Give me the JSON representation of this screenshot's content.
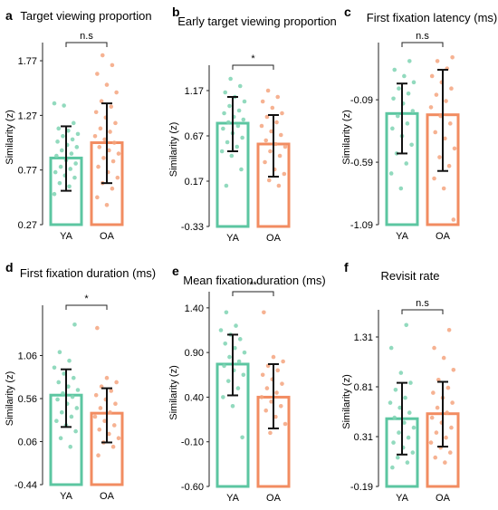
{
  "colors": {
    "young": "#5cc6a1",
    "old": "#f28c61",
    "young_dot": "#7fd3b3",
    "old_dot": "#f5a47f",
    "error": "#111111",
    "axis": "#222222"
  },
  "chart_data": [
    {
      "panel": "a",
      "type": "bar",
      "title": "Target viewing proportion",
      "ylabel": "Similarity (z)",
      "ylim": [
        0.27,
        1.87
      ],
      "yticks": [
        0.27,
        0.77,
        1.27,
        1.77
      ],
      "tick_labels": [
        "0.27",
        "0.77",
        "1.27",
        "1.77"
      ],
      "categories": [
        "YA",
        "OA"
      ],
      "values": [
        0.88,
        1.02
      ],
      "error": [
        [
          0.58,
          1.17
        ],
        [
          0.65,
          1.38
        ]
      ],
      "points": [
        [
          0.55,
          0.62,
          0.65,
          0.7,
          0.72,
          0.75,
          0.78,
          0.8,
          0.83,
          0.86,
          0.9,
          0.92,
          0.95,
          0.98,
          1.0,
          1.03,
          1.05,
          1.08,
          1.1,
          1.13,
          1.15,
          1.2,
          1.36,
          1.38
        ],
        [
          0.45,
          0.52,
          0.6,
          0.65,
          0.7,
          0.75,
          0.8,
          0.85,
          0.88,
          0.92,
          0.95,
          0.98,
          1.02,
          1.05,
          1.08,
          1.12,
          1.15,
          1.2,
          1.25,
          1.3,
          1.35,
          1.4,
          1.48,
          1.55,
          1.65,
          1.73,
          1.82
        ]
      ],
      "significance": "n.s"
    },
    {
      "panel": "b",
      "type": "bar",
      "title": "Early target viewing proportion",
      "ylabel": "Similarity (z)",
      "ylim": [
        -0.33,
        1.37
      ],
      "yticks": [
        -0.33,
        0.17,
        0.67,
        1.17
      ],
      "tick_labels": [
        "-0.33",
        "0.17",
        "0.67",
        "1.17"
      ],
      "categories": [
        "YA",
        "OA"
      ],
      "values": [
        0.81,
        0.58
      ],
      "error": [
        [
          0.5,
          1.1
        ],
        [
          0.22,
          0.9
        ]
      ],
      "points": [
        [
          0.12,
          0.3,
          0.45,
          0.5,
          0.55,
          0.6,
          0.65,
          0.7,
          0.75,
          0.78,
          0.82,
          0.85,
          0.88,
          0.92,
          0.95,
          1.0,
          1.05,
          1.1,
          1.15,
          1.22,
          1.3
        ],
        [
          0.12,
          0.18,
          0.25,
          0.3,
          0.38,
          0.45,
          0.5,
          0.55,
          0.58,
          0.62,
          0.68,
          0.72,
          0.78,
          0.82,
          0.88,
          0.92,
          0.98,
          1.05,
          1.1,
          1.17
        ]
      ],
      "significance": "*"
    },
    {
      "panel": "c",
      "type": "bar",
      "title": "First fixation latency (ms)",
      "ylabel": "Similarity (z)",
      "ylim": [
        -1.09,
        0.31
      ],
      "yticks": [
        -1.09,
        -0.59,
        -0.09
      ],
      "tick_labels": [
        "-1.09",
        "-0.59",
        "-0.09"
      ],
      "categories": [
        "YA",
        "OA"
      ],
      "values": [
        -0.2,
        -0.21
      ],
      "error": [
        [
          -0.52,
          0.04
        ],
        [
          -0.66,
          0.15
        ]
      ],
      "points": [
        [
          -0.8,
          -0.68,
          -0.6,
          -0.52,
          -0.45,
          -0.38,
          -0.32,
          -0.28,
          -0.22,
          -0.18,
          -0.12,
          -0.08,
          -0.04,
          0.0,
          0.05,
          0.1,
          0.15,
          0.22
        ],
        [
          -1.05,
          -0.8,
          -0.72,
          -0.62,
          -0.55,
          -0.48,
          -0.4,
          -0.35,
          -0.28,
          -0.22,
          -0.15,
          -0.1,
          -0.05,
          0.0,
          0.05,
          0.1,
          0.16,
          0.22,
          0.25
        ]
      ],
      "significance": "n.s"
    },
    {
      "panel": "d",
      "type": "bar",
      "title": "First fixation duration (ms)",
      "ylabel": "Similarity (z)",
      "ylim": [
        -0.44,
        1.56
      ],
      "yticks": [
        -0.44,
        0.06,
        0.56,
        1.06
      ],
      "tick_labels": [
        "-0.44",
        "0.06",
        "0.56",
        "1.06"
      ],
      "categories": [
        "YA",
        "OA"
      ],
      "values": [
        0.6,
        0.39
      ],
      "error": [
        [
          0.23,
          0.9
        ],
        [
          0.05,
          0.68
        ]
      ],
      "points": [
        [
          0.0,
          0.1,
          0.18,
          0.25,
          0.3,
          0.35,
          0.4,
          0.45,
          0.5,
          0.55,
          0.58,
          0.62,
          0.66,
          0.7,
          0.75,
          0.8,
          0.85,
          0.92,
          1.0,
          1.1,
          1.42
        ],
        [
          -0.1,
          0.0,
          0.05,
          0.1,
          0.15,
          0.2,
          0.25,
          0.3,
          0.35,
          0.4,
          0.45,
          0.5,
          0.55,
          0.6,
          0.65,
          0.7,
          0.75,
          0.8,
          1.38
        ]
      ],
      "significance": "*"
    },
    {
      "panel": "e",
      "type": "bar",
      "title": "Mean fixation duration (ms)",
      "ylabel": "Similarity (z)",
      "ylim": [
        -0.6,
        1.5
      ],
      "yticks": [
        -0.6,
        -0.1,
        0.4,
        0.9,
        1.4
      ],
      "tick_labels": [
        "-0.60",
        "-0.10",
        "0.40",
        "0.90",
        "1.40"
      ],
      "categories": [
        "YA",
        "OA"
      ],
      "values": [
        0.77,
        0.4
      ],
      "error": [
        [
          0.42,
          1.1
        ],
        [
          0.05,
          0.77
        ]
      ],
      "points": [
        [
          -0.05,
          0.3,
          0.4,
          0.5,
          0.58,
          0.65,
          0.7,
          0.75,
          0.8,
          0.85,
          0.9,
          0.95,
          1.0,
          1.05,
          1.1,
          1.15,
          1.2,
          1.35
        ],
        [
          0.0,
          0.1,
          0.18,
          0.25,
          0.3,
          0.35,
          0.4,
          0.45,
          0.5,
          0.55,
          0.6,
          0.65,
          0.7,
          0.75,
          0.8,
          0.85,
          1.35
        ]
      ],
      "significance": "**"
    },
    {
      "panel": "f",
      "type": "bar",
      "title": "Revisit rate",
      "ylabel": "Similarity (z)",
      "ylim": [
        -0.19,
        1.51
      ],
      "yticks": [
        -0.19,
        0.31,
        0.81,
        1.31
      ],
      "tick_labels": [
        "-0.19",
        "0.31",
        "0.81",
        "1.31"
      ],
      "categories": [
        "YA",
        "OA"
      ],
      "values": [
        0.49,
        0.54
      ],
      "error": [
        [
          0.13,
          0.85
        ],
        [
          0.21,
          0.86
        ]
      ],
      "points": [
        [
          0.0,
          0.05,
          0.1,
          0.15,
          0.2,
          0.25,
          0.3,
          0.35,
          0.4,
          0.45,
          0.5,
          0.55,
          0.6,
          0.65,
          0.7,
          0.78,
          0.85,
          0.95,
          1.2,
          1.43
        ],
        [
          0.05,
          0.1,
          0.15,
          0.2,
          0.25,
          0.3,
          0.35,
          0.4,
          0.45,
          0.5,
          0.55,
          0.6,
          0.65,
          0.7,
          0.75,
          0.8,
          0.88,
          0.98,
          1.1,
          1.2,
          1.38
        ]
      ],
      "significance": "n.s"
    }
  ]
}
